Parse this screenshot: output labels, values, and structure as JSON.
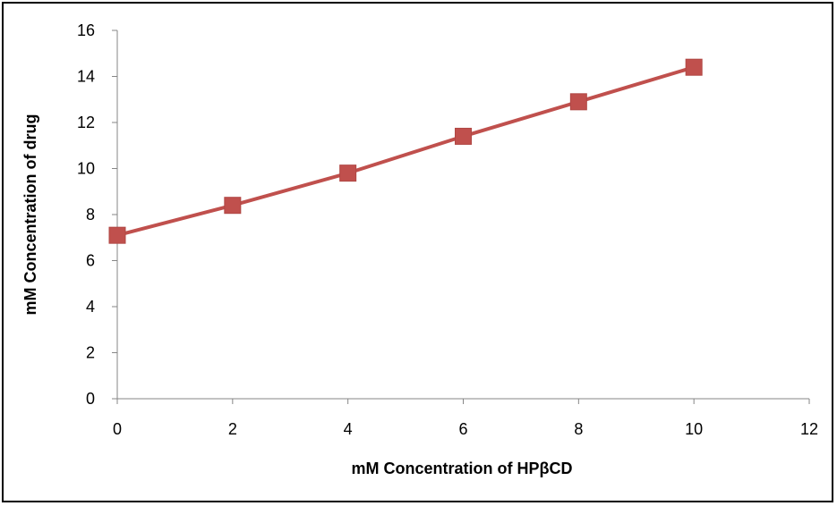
{
  "chart_data": {
    "type": "line",
    "title": "",
    "xlabel": "mM Concentration of HPβCD",
    "ylabel": "mM Concentration of drug",
    "xlim": [
      0,
      12
    ],
    "ylim": [
      0,
      16
    ],
    "xticks": [
      0,
      2,
      4,
      6,
      8,
      10,
      12
    ],
    "yticks": [
      0,
      2,
      4,
      6,
      8,
      10,
      12,
      14,
      16
    ],
    "grid": false,
    "legend": "none",
    "series": [
      {
        "x": [
          0,
          2,
          4,
          6,
          8,
          10
        ],
        "y": [
          7.1,
          8.4,
          9.8,
          11.4,
          12.9,
          14.4
        ],
        "color": "#c0504d",
        "marker": "square"
      }
    ]
  }
}
